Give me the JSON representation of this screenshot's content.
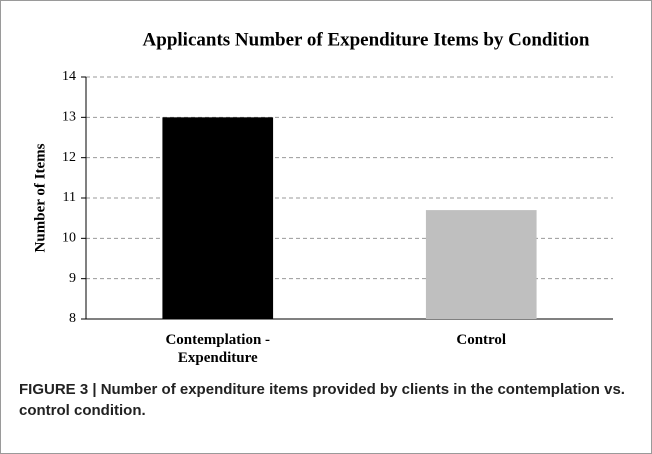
{
  "chart_data": {
    "type": "bar",
    "title": "Applicants Number of Expenditure Items by Condition",
    "y_label": "Number of Items",
    "categories": [
      "Contemplation - Expenditure",
      "Control"
    ],
    "values": [
      13,
      10.7
    ],
    "colors": [
      "#000000",
      "#bfbfbf"
    ],
    "ylim": [
      8,
      14
    ],
    "yticks": [
      8,
      9,
      10,
      11,
      12,
      13,
      14
    ],
    "grid": true
  },
  "caption": "FIGURE 3 | Number of expenditure items provided by clients in the contemplation vs. control condition."
}
